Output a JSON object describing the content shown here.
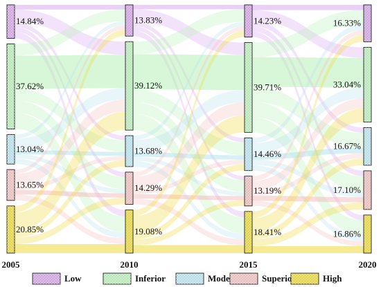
{
  "chart_data": {
    "type": "sankey",
    "years": [
      "2005",
      "2010",
      "2015",
      "2020"
    ],
    "categories": [
      "Low",
      "Inferior",
      "Moderate",
      "Superior",
      "High"
    ],
    "colors": {
      "Low": "#d9a8ee",
      "Inferior": "#b8efb8",
      "Moderate": "#b6e3ef",
      "Superior": "#f4c0c0",
      "High": "#eedb3a"
    },
    "legend_position": "bottom",
    "shares_percent": {
      "2005": [
        14.84,
        37.62,
        13.04,
        13.65,
        20.85
      ],
      "2010": [
        13.83,
        39.12,
        13.68,
        14.29,
        19.08
      ],
      "2015": [
        14.23,
        39.71,
        14.46,
        13.19,
        18.41
      ],
      "2020": [
        16.33,
        33.04,
        16.67,
        17.1,
        16.86
      ]
    },
    "labels": {
      "2005": [
        "14.84%",
        "37.62%",
        "13.04%",
        "13.65%",
        "20.85%"
      ],
      "2010": [
        "13.83%",
        "39.12%",
        "13.68%",
        "14.29%",
        "19.08%"
      ],
      "2015": [
        "14.23%",
        "39.71%",
        "14.46%",
        "13.19%",
        "18.41%"
      ],
      "2020": [
        "16.33%",
        "33.04%",
        "16.67%",
        "17.10%",
        "16.86%"
      ]
    }
  }
}
